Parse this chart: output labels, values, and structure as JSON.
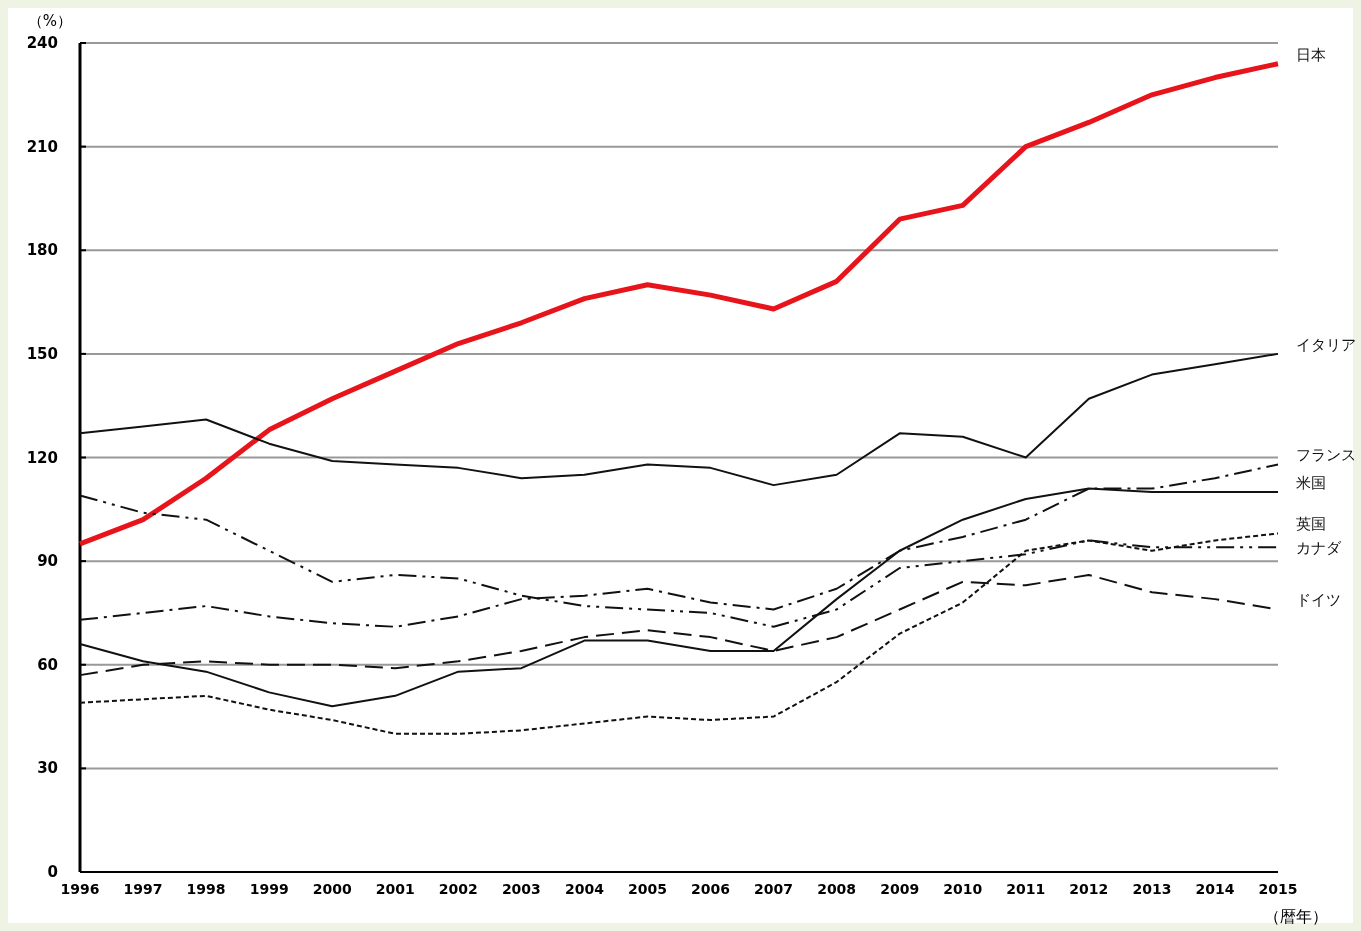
{
  "chart_data": {
    "type": "line",
    "ylabel": "（%）",
    "xlabel": "（暦年）",
    "x": [
      1996,
      1997,
      1998,
      1999,
      2000,
      2001,
      2002,
      2003,
      2004,
      2005,
      2006,
      2007,
      2008,
      2009,
      2010,
      2011,
      2012,
      2013,
      2014,
      2015
    ],
    "xlim": [
      1996,
      2015
    ],
    "xticks": [
      1996,
      1997,
      1998,
      1999,
      2000,
      2001,
      2002,
      2003,
      2004,
      2005,
      2006,
      2007,
      2008,
      2009,
      2010,
      2011,
      2012,
      2013,
      2014,
      2015
    ],
    "ylim": [
      0,
      240
    ],
    "yticks": [
      0,
      30,
      60,
      90,
      120,
      150,
      180,
      210,
      240
    ],
    "grid": "y",
    "legend": false,
    "marker": "none",
    "series": [
      {
        "name": "日本",
        "color": "#e8141b",
        "line_style": "solid",
        "values": [
          95,
          102,
          114,
          128,
          137,
          145,
          153,
          159,
          166,
          170,
          167,
          163,
          171,
          189,
          193,
          210,
          217,
          225,
          230,
          234
        ]
      },
      {
        "name": "イタリア",
        "color": "#111111",
        "line_style": "solid",
        "values": [
          127,
          129,
          131,
          124,
          119,
          118,
          117,
          114,
          115,
          118,
          117,
          112,
          115,
          127,
          126,
          120,
          137,
          144,
          147,
          150
        ]
      },
      {
        "name": "フランス",
        "color": "#111111",
        "line_style": "dashdot",
        "values": [
          73,
          75,
          77,
          74,
          72,
          71,
          74,
          79,
          80,
          82,
          78,
          76,
          82,
          93,
          97,
          102,
          111,
          111,
          114,
          118
        ]
      },
      {
        "name": "米国",
        "color": "#111111",
        "line_style": "solid",
        "values": [
          66,
          61,
          58,
          52,
          48,
          51,
          58,
          59,
          67,
          67,
          64,
          64,
          79,
          93,
          102,
          108,
          111,
          110,
          110,
          110
        ]
      },
      {
        "name": "英国",
        "color": "#111111",
        "line_style": "dotted",
        "values": [
          49,
          50,
          51,
          47,
          44,
          40,
          40,
          41,
          43,
          45,
          44,
          45,
          55,
          69,
          78,
          93,
          96,
          93,
          96,
          98
        ]
      },
      {
        "name": "カナダ",
        "color": "#111111",
        "line_style": "dashdotdot",
        "values": [
          109,
          104,
          102,
          93,
          84,
          86,
          85,
          80,
          77,
          76,
          75,
          71,
          76,
          88,
          90,
          92,
          96,
          94,
          94,
          94
        ]
      },
      {
        "name": "ドイツ",
        "color": "#111111",
        "line_style": "dashed",
        "values": [
          57,
          60,
          61,
          60,
          60,
          59,
          61,
          64,
          68,
          70,
          68,
          64,
          68,
          76,
          84,
          83,
          86,
          81,
          79,
          76
        ]
      }
    ]
  }
}
